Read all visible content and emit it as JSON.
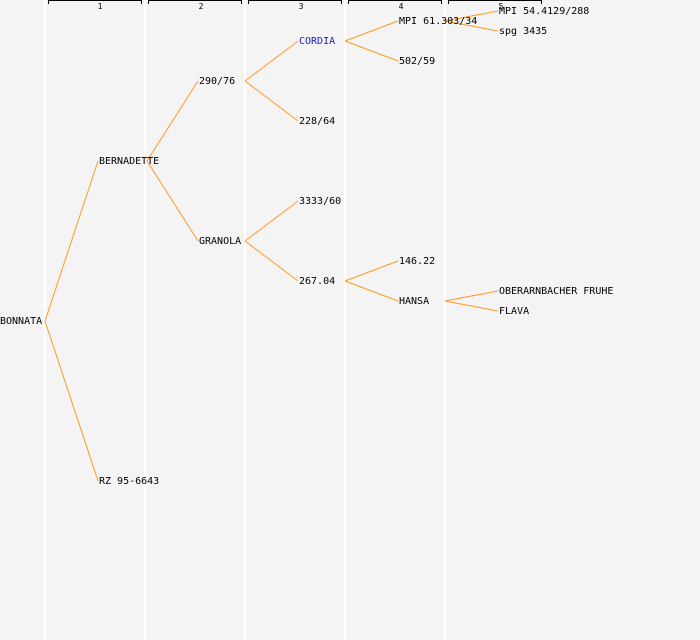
{
  "line_color": "#ff9a1f",
  "link_color": "#1a1acc",
  "generations": [
    "1",
    "2",
    "3",
    "4",
    "5"
  ],
  "nodes": {
    "bonnata": "BONNATA",
    "bernadette": "BERNADETTE",
    "rz": "RZ 95-6643",
    "n290": "290/76",
    "granola": "GRANOLA",
    "cordia": "CORDIA",
    "n228": "228/64",
    "n3333": "3333/60",
    "n267": "267.04",
    "mpi61": "MPI 61.303/34",
    "n502": "502/59",
    "n146": "146.22",
    "hansa": "HANSA",
    "mpi54": "MPI 54.4129/288",
    "spg": "spg 3435",
    "ober": "OBERARNBACHER FRUHE",
    "flava": "FLAVA"
  }
}
